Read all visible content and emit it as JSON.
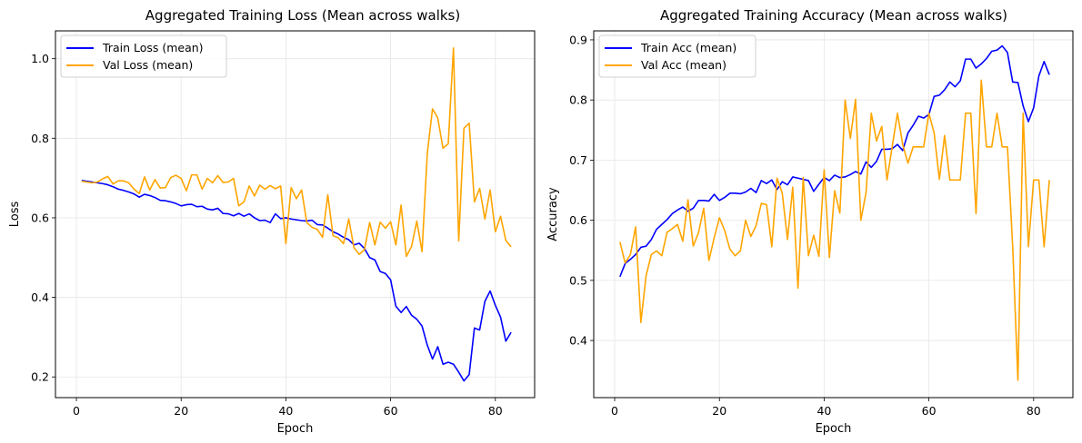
{
  "chart_data": [
    {
      "type": "line",
      "title": "Aggregated Training Loss (Mean across walks)",
      "xlabel": "Epoch",
      "ylabel": "Loss",
      "xlim": [
        -4,
        87.5
      ],
      "ylim": [
        0.148,
        1.07
      ],
      "xticks": [
        0,
        20,
        40,
        60,
        80
      ],
      "yticks": [
        0.2,
        0.4,
        0.6,
        0.8,
        1.0
      ],
      "ytick_labels": [
        "0.2",
        "0.4",
        "0.6",
        "0.8",
        "1.0"
      ],
      "grid": true,
      "legend": "upper-left",
      "x": [
        1,
        2,
        3,
        4,
        5,
        6,
        7,
        8,
        9,
        10,
        11,
        12,
        13,
        14,
        15,
        16,
        17,
        18,
        19,
        20,
        21,
        22,
        23,
        24,
        25,
        26,
        27,
        28,
        29,
        30,
        31,
        32,
        33,
        34,
        35,
        36,
        37,
        38,
        39,
        40,
        41,
        42,
        43,
        44,
        45,
        46,
        47,
        48,
        49,
        50,
        51,
        52,
        53,
        54,
        55,
        56,
        57,
        58,
        59,
        60,
        61,
        62,
        63,
        64,
        65,
        66,
        67,
        68,
        69,
        70,
        71,
        72,
        73,
        74,
        75,
        76,
        77,
        78,
        79,
        80,
        81,
        82,
        83
      ],
      "series": [
        {
          "name": "Train Loss (mean)",
          "color": "#0000ff",
          "values": [
            0.694,
            0.692,
            0.69,
            0.688,
            0.686,
            0.683,
            0.678,
            0.672,
            0.669,
            0.665,
            0.66,
            0.652,
            0.659,
            0.656,
            0.651,
            0.644,
            0.643,
            0.64,
            0.636,
            0.63,
            0.633,
            0.634,
            0.628,
            0.629,
            0.622,
            0.62,
            0.624,
            0.611,
            0.61,
            0.605,
            0.611,
            0.604,
            0.61,
            0.6,
            0.593,
            0.594,
            0.588,
            0.61,
            0.598,
            0.6,
            0.597,
            0.595,
            0.593,
            0.592,
            0.594,
            0.583,
            0.582,
            0.574,
            0.565,
            0.559,
            0.551,
            0.545,
            0.532,
            0.536,
            0.523,
            0.5,
            0.494,
            0.465,
            0.46,
            0.444,
            0.378,
            0.362,
            0.377,
            0.355,
            0.345,
            0.328,
            0.28,
            0.245,
            0.276,
            0.232,
            0.237,
            0.232,
            0.212,
            0.19,
            0.206,
            0.323,
            0.318,
            0.39,
            0.416,
            0.38,
            0.35,
            0.29,
            0.312
          ]
        },
        {
          "name": "Val Loss (mean)",
          "color": "#ffa500",
          "values": [
            0.692,
            0.69,
            0.688,
            0.69,
            0.698,
            0.704,
            0.685,
            0.693,
            0.693,
            0.688,
            0.672,
            0.661,
            0.703,
            0.67,
            0.696,
            0.675,
            0.676,
            0.701,
            0.707,
            0.699,
            0.668,
            0.708,
            0.708,
            0.672,
            0.699,
            0.688,
            0.706,
            0.689,
            0.69,
            0.699,
            0.63,
            0.64,
            0.68,
            0.655,
            0.682,
            0.672,
            0.681,
            0.673,
            0.68,
            0.535,
            0.676,
            0.648,
            0.67,
            0.588,
            0.576,
            0.571,
            0.551,
            0.658,
            0.555,
            0.55,
            0.535,
            0.597,
            0.525,
            0.508,
            0.52,
            0.588,
            0.532,
            0.589,
            0.574,
            0.59,
            0.532,
            0.632,
            0.503,
            0.528,
            0.592,
            0.515,
            0.762,
            0.874,
            0.851,
            0.775,
            0.786,
            1.027,
            0.542,
            0.825,
            0.838,
            0.64,
            0.674,
            0.597,
            0.67,
            0.565,
            0.604,
            0.543,
            0.527
          ]
        }
      ]
    },
    {
      "type": "line",
      "title": "Aggregated Training Accuracy (Mean across walks)",
      "xlabel": "Epoch",
      "ylabel": "Accuracy",
      "xlim": [
        -4,
        87.5
      ],
      "ylim": [
        0.305,
        0.915
      ],
      "xticks": [
        0,
        20,
        40,
        60,
        80
      ],
      "yticks": [
        0.4,
        0.5,
        0.6,
        0.7,
        0.8,
        0.9
      ],
      "ytick_labels": [
        "0.4",
        "0.5",
        "0.6",
        "0.7",
        "0.8",
        "0.9"
      ],
      "grid": true,
      "legend": "upper-left",
      "x": [
        1,
        2,
        3,
        4,
        5,
        6,
        7,
        8,
        9,
        10,
        11,
        12,
        13,
        14,
        15,
        16,
        17,
        18,
        19,
        20,
        21,
        22,
        23,
        24,
        25,
        26,
        27,
        28,
        29,
        30,
        31,
        32,
        33,
        34,
        35,
        36,
        37,
        38,
        39,
        40,
        41,
        42,
        43,
        44,
        45,
        46,
        47,
        48,
        49,
        50,
        51,
        52,
        53,
        54,
        55,
        56,
        57,
        58,
        59,
        60,
        61,
        62,
        63,
        64,
        65,
        66,
        67,
        68,
        69,
        70,
        71,
        72,
        73,
        74,
        75,
        76,
        77,
        78,
        79,
        80,
        81,
        82,
        83
      ],
      "series": [
        {
          "name": "Train Acc (mean)",
          "color": "#0000ff",
          "values": [
            0.506,
            0.528,
            0.535,
            0.543,
            0.555,
            0.557,
            0.568,
            0.585,
            0.593,
            0.601,
            0.611,
            0.617,
            0.622,
            0.615,
            0.62,
            0.633,
            0.633,
            0.632,
            0.643,
            0.633,
            0.638,
            0.645,
            0.645,
            0.644,
            0.647,
            0.653,
            0.646,
            0.666,
            0.661,
            0.667,
            0.651,
            0.664,
            0.659,
            0.672,
            0.67,
            0.668,
            0.666,
            0.648,
            0.66,
            0.671,
            0.666,
            0.675,
            0.671,
            0.672,
            0.676,
            0.681,
            0.677,
            0.697,
            0.688,
            0.698,
            0.718,
            0.718,
            0.719,
            0.726,
            0.716,
            0.745,
            0.758,
            0.773,
            0.77,
            0.776,
            0.806,
            0.808,
            0.817,
            0.83,
            0.822,
            0.832,
            0.868,
            0.868,
            0.853,
            0.86,
            0.869,
            0.881,
            0.883,
            0.89,
            0.879,
            0.83,
            0.829,
            0.79,
            0.764,
            0.787,
            0.84,
            0.864,
            0.842
          ]
        },
        {
          "name": "Val Acc (mean)",
          "color": "#ffa500",
          "values": [
            0.564,
            0.529,
            0.543,
            0.589,
            0.43,
            0.508,
            0.543,
            0.549,
            0.541,
            0.58,
            0.586,
            0.593,
            0.565,
            0.634,
            0.557,
            0.579,
            0.62,
            0.533,
            0.571,
            0.604,
            0.583,
            0.552,
            0.541,
            0.549,
            0.6,
            0.573,
            0.591,
            0.628,
            0.626,
            0.556,
            0.67,
            0.645,
            0.568,
            0.655,
            0.487,
            0.671,
            0.541,
            0.575,
            0.54,
            0.684,
            0.538,
            0.649,
            0.612,
            0.8,
            0.736,
            0.801,
            0.6,
            0.646,
            0.778,
            0.732,
            0.756,
            0.667,
            0.723,
            0.778,
            0.726,
            0.695,
            0.722,
            0.722,
            0.722,
            0.778,
            0.745,
            0.668,
            0.741,
            0.667,
            0.667,
            0.667,
            0.778,
            0.778,
            0.611,
            0.833,
            0.722,
            0.722,
            0.778,
            0.722,
            0.722,
            0.556,
            0.334,
            0.778,
            0.556,
            0.667,
            0.667,
            0.556,
            0.667
          ]
        }
      ]
    }
  ]
}
